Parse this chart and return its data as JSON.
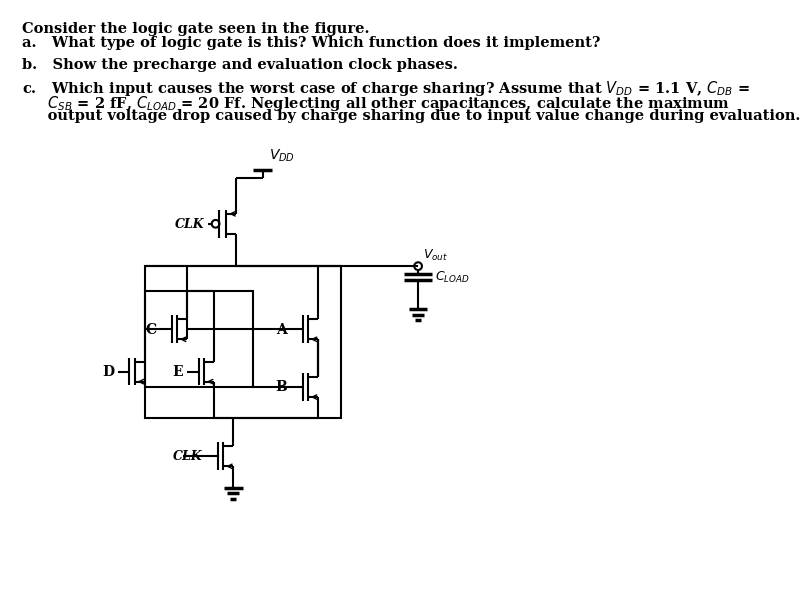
{
  "bg_color": "#ffffff",
  "text_color": "#000000",
  "line_color": "#000000",
  "title": "Consider the logic gate seen in the figure.",
  "qa": "a.   What type of logic gate is this? Which function does it implement?",
  "qb": "b.   Show the precharge and evaluation clock phases.",
  "qc1": "c.   Which input causes the worst case of charge sharing? Assume that $V_{DD}$ = 1.1 V, $C_{DB}$ =",
  "qc2": "     $C_{SB}$ = 2 fF, $C_{LOAD}$ = 20 Ff. Neglecting all other capacitances, calculate the maximum",
  "qc3": "     output voltage drop caused by charge sharing due to input value change during evaluation."
}
